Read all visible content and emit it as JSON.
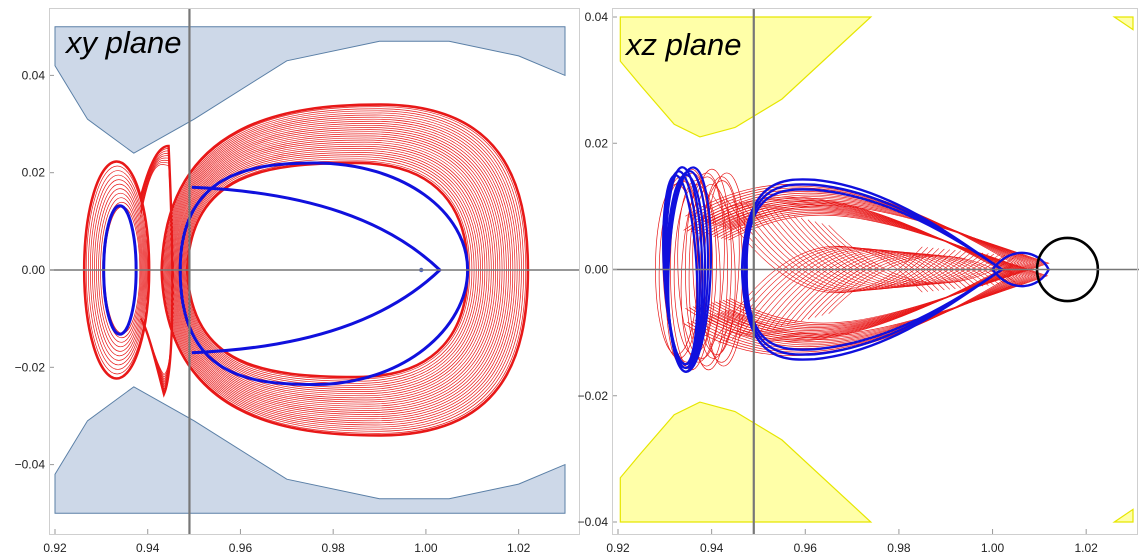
{
  "chart_data": [
    {
      "type": "line",
      "panel": "left",
      "title": "xy plane",
      "xlim": [
        0.92,
        1.03
      ],
      "ylim": [
        -0.052,
        0.052
      ],
      "x_ticks": [
        "0.92",
        "0.94",
        "0.96",
        "0.98",
        "1.00",
        "1.02"
      ],
      "y_ticks": [
        "0.04",
        "0.02",
        "0.00",
        "−0.02",
        "−0.04"
      ],
      "x_tick_values": [
        0.92,
        0.94,
        0.96,
        0.98,
        1.0,
        1.02
      ],
      "y_tick_values": [
        0.04,
        0.02,
        0.0,
        -0.02,
        -0.04
      ],
      "vertical_line_x": 0.949,
      "forbidden_region_color": "#cdd8e8",
      "forbidden_region_edge": "#5a7fa6",
      "forbidden_boundary": {
        "x": [
          0.92,
          0.927,
          0.937,
          0.95,
          0.97,
          0.99,
          1.005,
          1.02,
          1.03
        ],
        "y": [
          0.042,
          0.031,
          0.024,
          0.031,
          0.043,
          0.047,
          0.047,
          0.044,
          0.04
        ]
      },
      "red_envelope": {
        "color": "#e81818",
        "x_min": 0.928,
        "x_max": 1.022,
        "y_extent": 0.034
      },
      "blue_orbit": {
        "color": "#1010dd",
        "left_loop": {
          "center_x": 0.934,
          "half_width": 0.0035,
          "half_height": 0.0132
        },
        "right_loop": {
          "left_x": 0.947,
          "right_x": 1.009,
          "y_extent": 0.022
        }
      },
      "marker_point": {
        "x": 0.999,
        "y": 0.0
      }
    },
    {
      "type": "line",
      "panel": "right",
      "title": "xz plane",
      "xlim": [
        0.92,
        1.03
      ],
      "ylim": [
        -0.04,
        0.04
      ],
      "x_ticks": [
        "0.92",
        "0.94",
        "0.96",
        "0.98",
        "1.00",
        "1.02"
      ],
      "y_ticks": [
        "0.04",
        "0.02",
        "0.00",
        "−0.02",
        "−0.04"
      ],
      "x_tick_values": [
        0.92,
        0.94,
        0.96,
        0.98,
        1.0,
        1.02
      ],
      "y_tick_values": [
        0.04,
        0.02,
        0.0,
        -0.02,
        -0.04
      ],
      "vertical_line_x": 0.949,
      "forbidden_region_color": "#ffffa8",
      "forbidden_region_edge": "#e6e600",
      "red_envelope": {
        "color": "#e81818",
        "x_min": 0.927,
        "x_max": 1.012,
        "z_extent": 0.016
      },
      "blue_orbit": {
        "color": "#1010dd",
        "x_min": 0.929,
        "x_max": 1.012,
        "z_extent": 0.0165
      },
      "black_orbit": {
        "color": "#000000",
        "center_x": 1.016,
        "half_width": 0.0065,
        "z_extent": 0.005
      }
    }
  ]
}
